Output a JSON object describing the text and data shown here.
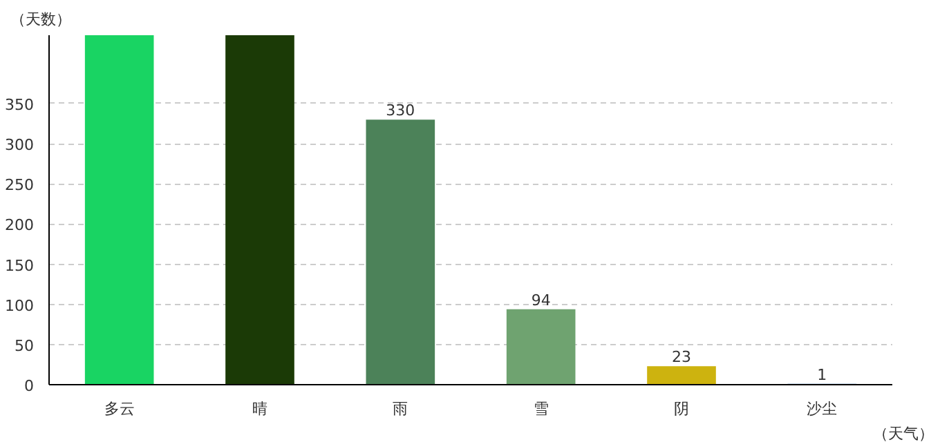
{
  "chart_data": {
    "type": "bar",
    "xlabel": "（天气）",
    "ylabel": "（天数）",
    "categories": [
      "多云",
      "晴",
      "雨",
      "雪",
      "阴",
      "沙尘"
    ],
    "values": [
      435,
      435,
      330,
      94,
      23,
      1
    ],
    "colors": [
      "#19d463",
      "#1b3a06",
      "#4c8259",
      "#6fa370",
      "#cdb30f",
      "#4a86c8"
    ],
    "value_labels": [
      null,
      null,
      "330",
      "94",
      "23",
      "1"
    ],
    "ylim": [
      0,
      435
    ],
    "yticks": [
      0,
      50,
      100,
      150,
      200,
      250,
      300,
      350
    ],
    "grid": "y"
  }
}
